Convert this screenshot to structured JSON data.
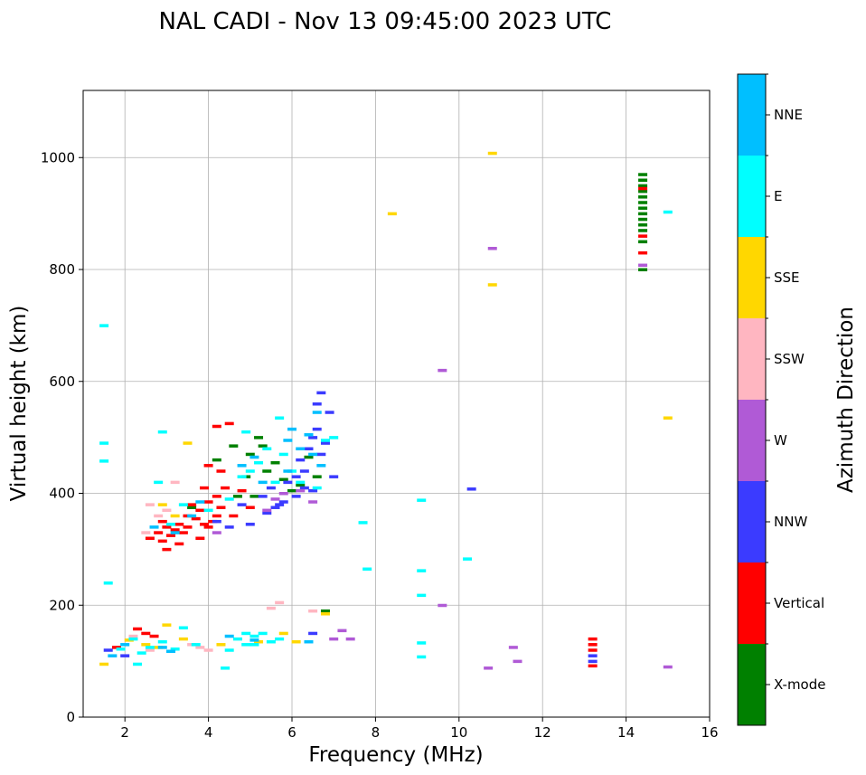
{
  "chart_data": {
    "type": "scatter",
    "title": "NAL CADI - Nov 13 09:45:00 2023 UTC",
    "xlabel": "Frequency (MHz)",
    "ylabel": "Virtual height (km)",
    "xlim": [
      1,
      16
    ],
    "ylim": [
      0,
      1120
    ],
    "xticks": [
      2,
      4,
      6,
      8,
      10,
      12,
      14,
      16
    ],
    "yticks": [
      0,
      200,
      400,
      600,
      800,
      1000
    ],
    "grid": true,
    "colorbar": {
      "label": "Azimuth Direction",
      "categories": [
        "X-mode",
        "Vertical",
        "NNW",
        "W",
        "SSW",
        "SSE",
        "E",
        "NNE"
      ],
      "colors": [
        "#008000",
        "#ff0000",
        "#3b3bff",
        "#b05ad6",
        "#ffb6c1",
        "#ffd700",
        "#00ffff",
        "#00bfff"
      ]
    },
    "series": [
      {
        "name": "X-mode",
        "points": [
          [
            14.4,
            970
          ],
          [
            14.4,
            960
          ],
          [
            14.4,
            950
          ],
          [
            14.4,
            940
          ],
          [
            14.4,
            930
          ],
          [
            14.4,
            920
          ],
          [
            14.4,
            910
          ],
          [
            14.4,
            900
          ],
          [
            14.4,
            890
          ],
          [
            14.4,
            880
          ],
          [
            14.4,
            870
          ],
          [
            14.4,
            850
          ],
          [
            14.4,
            800
          ],
          [
            4.7,
            395
          ],
          [
            4.9,
            430
          ],
          [
            5.0,
            470
          ],
          [
            5.2,
            500
          ],
          [
            5.3,
            485
          ],
          [
            5.4,
            440
          ],
          [
            5.6,
            455
          ],
          [
            5.8,
            425
          ],
          [
            6.0,
            405
          ],
          [
            6.2,
            415
          ],
          [
            6.4,
            465
          ],
          [
            6.6,
            430
          ],
          [
            4.2,
            460
          ],
          [
            4.6,
            485
          ],
          [
            5.1,
            395
          ],
          [
            3.6,
            375
          ],
          [
            6.8,
            190
          ]
        ]
      },
      {
        "name": "Vertical",
        "points": [
          [
            14.4,
            945
          ],
          [
            14.4,
            860
          ],
          [
            14.4,
            830
          ],
          [
            13.2,
            140
          ],
          [
            13.2,
            130
          ],
          [
            13.2,
            120
          ],
          [
            13.2,
            92
          ],
          [
            2.6,
            320
          ],
          [
            2.8,
            330
          ],
          [
            2.9,
            315
          ],
          [
            3.0,
            340
          ],
          [
            3.1,
            325
          ],
          [
            3.2,
            335
          ],
          [
            3.3,
            345
          ],
          [
            3.4,
            330
          ],
          [
            3.5,
            360
          ],
          [
            3.6,
            380
          ],
          [
            3.7,
            355
          ],
          [
            3.8,
            370
          ],
          [
            3.9,
            345
          ],
          [
            4.0,
            385
          ],
          [
            4.1,
            350
          ],
          [
            4.2,
            360
          ],
          [
            4.3,
            375
          ],
          [
            3.5,
            340
          ],
          [
            3.8,
            320
          ],
          [
            4.0,
            340
          ],
          [
            4.2,
            395
          ],
          [
            4.4,
            410
          ],
          [
            4.5,
            525
          ],
          [
            4.2,
            520
          ],
          [
            4.0,
            450
          ],
          [
            2.9,
            350
          ],
          [
            3.3,
            310
          ],
          [
            4.6,
            360
          ],
          [
            4.8,
            405
          ],
          [
            5.0,
            375
          ],
          [
            3.0,
            300
          ],
          [
            3.9,
            410
          ],
          [
            4.3,
            440
          ],
          [
            2.3,
            158
          ],
          [
            2.5,
            150
          ],
          [
            2.7,
            145
          ],
          [
            1.8,
            125
          ]
        ]
      },
      {
        "name": "NNW",
        "points": [
          [
            13.2,
            110
          ],
          [
            13.2,
            100
          ],
          [
            10.3,
            408
          ],
          [
            5.3,
            395
          ],
          [
            5.5,
            410
          ],
          [
            5.7,
            380
          ],
          [
            5.9,
            420
          ],
          [
            6.1,
            430
          ],
          [
            6.3,
            440
          ],
          [
            6.4,
            480
          ],
          [
            6.5,
            500
          ],
          [
            6.6,
            515
          ],
          [
            6.7,
            470
          ],
          [
            6.8,
            490
          ],
          [
            6.9,
            545
          ],
          [
            6.6,
            560
          ],
          [
            6.5,
            405
          ],
          [
            6.3,
            410
          ],
          [
            6.1,
            395
          ],
          [
            5.8,
            385
          ],
          [
            5.6,
            375
          ],
          [
            5.4,
            365
          ],
          [
            5.0,
            345
          ],
          [
            4.8,
            380
          ],
          [
            6.2,
            460
          ],
          [
            6.7,
            580
          ],
          [
            6.5,
            150
          ],
          [
            7.0,
            430
          ],
          [
            1.6,
            120
          ],
          [
            2.0,
            110
          ],
          [
            4.2,
            350
          ],
          [
            4.5,
            340
          ]
        ]
      },
      {
        "name": "W",
        "points": [
          [
            14.4,
            808
          ],
          [
            15.0,
            90
          ],
          [
            10.8,
            838
          ],
          [
            9.6,
            620
          ],
          [
            9.6,
            200
          ],
          [
            10.7,
            88
          ],
          [
            11.3,
            125
          ],
          [
            11.4,
            100
          ],
          [
            7.2,
            155
          ],
          [
            7.4,
            140
          ],
          [
            7.0,
            140
          ],
          [
            5.4,
            370
          ],
          [
            5.6,
            390
          ],
          [
            5.8,
            400
          ],
          [
            6.2,
            405
          ],
          [
            4.2,
            330
          ],
          [
            6.5,
            385
          ]
        ]
      },
      {
        "name": "SSW",
        "points": [
          [
            5.5,
            195
          ],
          [
            5.7,
            205
          ],
          [
            6.5,
            190
          ],
          [
            2.6,
            380
          ],
          [
            2.8,
            360
          ],
          [
            3.0,
            370
          ],
          [
            2.5,
            330
          ],
          [
            3.2,
            420
          ],
          [
            2.2,
            145
          ],
          [
            2.6,
            120
          ],
          [
            3.6,
            130
          ],
          [
            4.0,
            120
          ],
          [
            3.8,
            125
          ]
        ]
      },
      {
        "name": "SSE",
        "points": [
          [
            10.8,
            1008
          ],
          [
            10.8,
            773
          ],
          [
            8.4,
            900
          ],
          [
            15.0,
            535
          ],
          [
            2.9,
            380
          ],
          [
            3.2,
            360
          ],
          [
            3.5,
            490
          ],
          [
            2.1,
            138
          ],
          [
            2.5,
            130
          ],
          [
            3.4,
            140
          ],
          [
            4.3,
            130
          ],
          [
            5.2,
            135
          ],
          [
            5.8,
            150
          ],
          [
            6.1,
            135
          ],
          [
            1.5,
            95
          ],
          [
            6.8,
            185
          ],
          [
            3.0,
            165
          ],
          [
            2.8,
            125
          ]
        ]
      },
      {
        "name": "E",
        "points": [
          [
            15.0,
            903
          ],
          [
            9.1,
            388
          ],
          [
            9.1,
            262
          ],
          [
            9.1,
            218
          ],
          [
            9.1,
            133
          ],
          [
            9.1,
            108
          ],
          [
            10.2,
            283
          ],
          [
            7.8,
            265
          ],
          [
            7.7,
            348
          ],
          [
            1.5,
            700
          ],
          [
            1.5,
            490
          ],
          [
            1.5,
            458
          ],
          [
            1.6,
            240
          ],
          [
            2.8,
            420
          ],
          [
            2.9,
            510
          ],
          [
            4.4,
            88
          ],
          [
            4.7,
            140
          ],
          [
            4.9,
            150
          ],
          [
            5.1,
            145
          ],
          [
            5.3,
            150
          ],
          [
            5.5,
            135
          ],
          [
            5.7,
            140
          ],
          [
            4.9,
            130
          ],
          [
            5.1,
            130
          ],
          [
            1.9,
            122
          ],
          [
            2.2,
            140
          ],
          [
            2.4,
            115
          ],
          [
            2.6,
            125
          ],
          [
            2.9,
            135
          ],
          [
            3.2,
            122
          ],
          [
            3.4,
            160
          ],
          [
            3.7,
            130
          ],
          [
            2.3,
            95
          ],
          [
            4.5,
            120
          ],
          [
            4.8,
            430
          ],
          [
            5.0,
            440
          ],
          [
            5.2,
            455
          ],
          [
            5.4,
            480
          ],
          [
            5.6,
            420
          ],
          [
            5.8,
            470
          ],
          [
            6.0,
            440
          ],
          [
            6.2,
            420
          ],
          [
            3.4,
            380
          ],
          [
            3.1,
            345
          ],
          [
            5.7,
            535
          ],
          [
            4.9,
            510
          ],
          [
            6.8,
            495
          ],
          [
            7.0,
            500
          ],
          [
            6.6,
            410
          ],
          [
            4.5,
            390
          ],
          [
            4.0,
            370
          ]
        ]
      },
      {
        "name": "NNE",
        "points": [
          [
            6.6,
            545
          ],
          [
            6.4,
            505
          ],
          [
            6.5,
            470
          ],
          [
            6.7,
            450
          ],
          [
            5.9,
            495
          ],
          [
            6.0,
            515
          ],
          [
            6.2,
            480
          ],
          [
            5.9,
            440
          ],
          [
            5.1,
            465
          ],
          [
            5.3,
            420
          ],
          [
            4.8,
            450
          ],
          [
            3.8,
            385
          ],
          [
            3.2,
            330
          ],
          [
            2.7,
            340
          ],
          [
            3.6,
            360
          ],
          [
            2.9,
            125
          ],
          [
            3.1,
            118
          ],
          [
            2.0,
            130
          ],
          [
            1.7,
            110
          ],
          [
            6.4,
            135
          ],
          [
            5.1,
            138
          ],
          [
            4.5,
            145
          ]
        ]
      }
    ]
  }
}
